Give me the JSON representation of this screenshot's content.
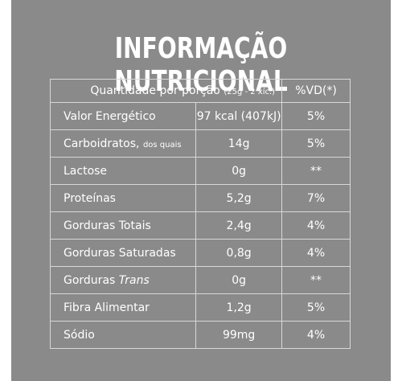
{
  "title": "INFORMAÇÃO NUTRICIONAL",
  "header": {
    "serving_label": "Quantidade por porção",
    "serving_size": "(25g - 2 xíc.)",
    "vd_label": "%VD(*)"
  },
  "rows": [
    {
      "name": "Valor Energético",
      "amount": "97 kcal (407kJ)",
      "vd": "5%"
    },
    {
      "name": "Carboidratos,",
      "note": "dos quais",
      "amount": "14g",
      "vd": "5%"
    },
    {
      "name": "Lactose",
      "amount": "0g",
      "vd": "**"
    },
    {
      "name": "Proteínas",
      "amount": "5,2g",
      "vd": "7%"
    },
    {
      "name": "Gorduras Totais",
      "amount": "2,4g",
      "vd": "4%"
    },
    {
      "name": "Gorduras Saturadas",
      "amount": "0,8g",
      "vd": "4%"
    },
    {
      "name": "Gorduras",
      "name_italic": "Trans",
      "amount": "0g",
      "vd": "**"
    },
    {
      "name": "Fibra Alimentar",
      "amount": "1,2g",
      "vd": "5%"
    },
    {
      "name": "Sódio",
      "amount": "99mg",
      "vd": "4%"
    }
  ],
  "colors": {
    "panel_bg": "#8a8a8a",
    "text": "#ffffff",
    "grid": "#d8d8d8"
  }
}
